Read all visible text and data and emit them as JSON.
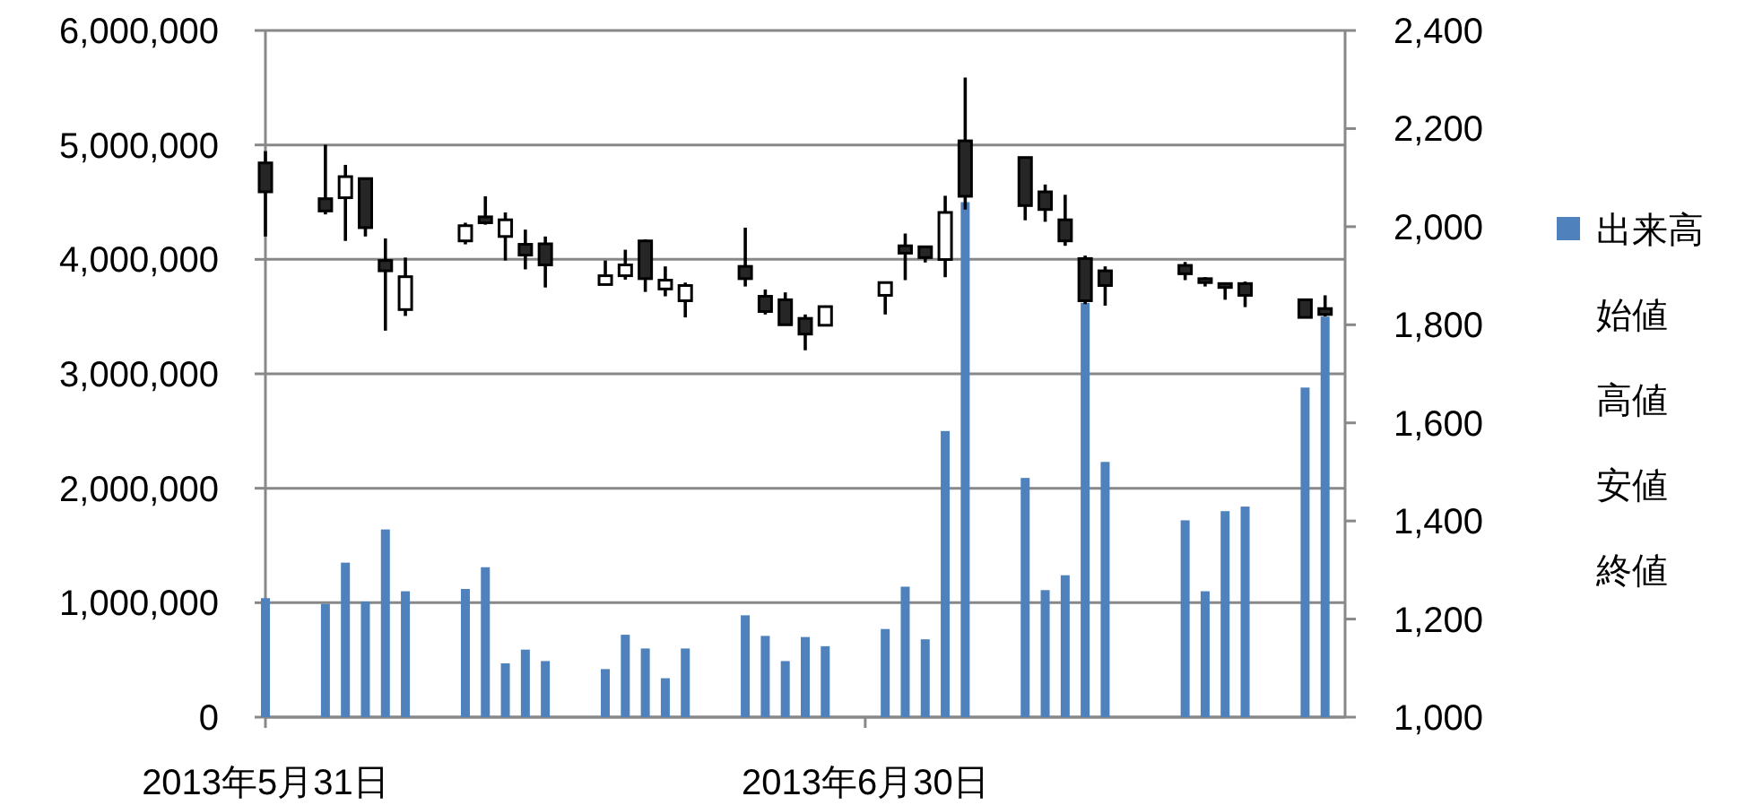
{
  "chart_data": {
    "type": "bar",
    "x": [
      "2013-05-31",
      "2013-06-03",
      "2013-06-04",
      "2013-06-05",
      "2013-06-06",
      "2013-06-07",
      "2013-06-10",
      "2013-06-11",
      "2013-06-12",
      "2013-06-13",
      "2013-06-14",
      "2013-06-17",
      "2013-06-18",
      "2013-06-19",
      "2013-06-20",
      "2013-06-21",
      "2013-06-24",
      "2013-06-25",
      "2013-06-26",
      "2013-06-27",
      "2013-06-28",
      "2013-07-01",
      "2013-07-02",
      "2013-07-03",
      "2013-07-04",
      "2013-07-05",
      "2013-07-08",
      "2013-07-09",
      "2013-07-10",
      "2013-07-11",
      "2013-07-12",
      "2013-07-16",
      "2013-07-17",
      "2013-07-18",
      "2013-07-19",
      "2013-07-22",
      "2013-07-23"
    ],
    "series": [
      {
        "name": "出来高",
        "color": "#4f81bd",
        "values": [
          1040000,
          990000,
          1350000,
          1010000,
          1640000,
          1100000,
          1120000,
          1310000,
          470000,
          590000,
          490000,
          420000,
          720000,
          600000,
          340000,
          600000,
          890000,
          710000,
          490000,
          700000,
          620000,
          770000,
          1140000,
          680000,
          2500000,
          4500000,
          2090000,
          1110000,
          1240000,
          3620000,
          2230000,
          1720000,
          1100000,
          1800000,
          1840000,
          2880000,
          3500000
        ]
      },
      {
        "type": "candlestick",
        "axis": "y2",
        "colors": [
          "#262626",
          "#262626",
          "#ffffff",
          "#262626",
          "#262626",
          "#ffffff",
          "#ffffff",
          "#262626",
          "#ffffff",
          "#262626",
          "#262626",
          "#ffffff",
          "#ffffff",
          "#262626",
          "#ffffff",
          "#ffffff",
          "#262626",
          "#262626",
          "#262626",
          "#262626",
          "#ffffff",
          "#ffffff",
          "#262626",
          "#262626",
          "#ffffff",
          "#262626",
          "#262626",
          "#262626",
          "#262626",
          "#262626",
          "#262626",
          "#262626",
          "#262626",
          "#262626",
          "#262626",
          "#262626",
          "#262626"
        ],
        "ohlc": [
          [
            2130,
            2154,
            1980,
            2071
          ],
          [
            2057,
            2167,
            2025,
            2032
          ],
          [
            2059,
            2126,
            1971,
            2102
          ],
          [
            2098,
            2098,
            1980,
            1998
          ],
          [
            1931,
            1976,
            1788,
            1910
          ],
          [
            1831,
            1937,
            1818,
            1898
          ],
          [
            1971,
            2008,
            1964,
            2002
          ],
          [
            2020,
            2062,
            2004,
            2008
          ],
          [
            1980,
            2029,
            1931,
            2014
          ],
          [
            1964,
            1994,
            1913,
            1942
          ],
          [
            1965,
            1980,
            1876,
            1922
          ],
          [
            1882,
            1931,
            1882,
            1900
          ],
          [
            1900,
            1953,
            1892,
            1922
          ],
          [
            1971,
            1974,
            1867,
            1894
          ],
          [
            1873,
            1919,
            1858,
            1891
          ],
          [
            1849,
            1886,
            1815,
            1880
          ],
          [
            1919,
            1998,
            1878,
            1894
          ],
          [
            1858,
            1872,
            1821,
            1827
          ],
          [
            1851,
            1866,
            1800,
            1800
          ],
          [
            1813,
            1821,
            1748,
            1781
          ],
          [
            1799,
            1839,
            1799,
            1837
          ],
          [
            1860,
            1888,
            1821,
            1886
          ],
          [
            1961,
            1986,
            1891,
            1946
          ],
          [
            1959,
            1961,
            1927,
            1937
          ],
          [
            1933,
            2063,
            1897,
            2029
          ],
          [
            2175,
            2304,
            2035,
            2062
          ],
          [
            2141,
            2141,
            2013,
            2043
          ],
          [
            2071,
            2086,
            2010,
            2035
          ],
          [
            2014,
            2065,
            1961,
            1971
          ],
          [
            1935,
            1941,
            1842,
            1849
          ],
          [
            1910,
            1919,
            1839,
            1880
          ],
          [
            1921,
            1928,
            1891,
            1904
          ],
          [
            1894,
            1897,
            1878,
            1886
          ],
          [
            1884,
            1884,
            1851,
            1876
          ],
          [
            1884,
            1888,
            1836,
            1860
          ],
          [
            1851,
            1851,
            1815,
            1815
          ],
          [
            1833,
            1860,
            1817,
            1821
          ]
        ]
      }
    ],
    "xlim": [
      "2013-05-31",
      "2013-07-24"
    ],
    "xticks": [
      {
        "value": "2013-05-31",
        "label": "2013年5月31日"
      },
      {
        "value": "2013-06-30",
        "label": "2013年6月30日"
      }
    ],
    "ylim": [
      0,
      6000000
    ],
    "yticks": [
      0,
      {
        "value": 1000000,
        "label": "1,000,000"
      },
      {
        "value": 2000000,
        "label": "2,000,000"
      },
      {
        "value": 3000000,
        "label": "3,000,000"
      },
      {
        "value": 4000000,
        "label": "4,000,000"
      },
      {
        "value": 5000000,
        "label": "5,000,000"
      },
      {
        "value": 6000000,
        "label": "6,000,000"
      }
    ],
    "y2lim": [
      1000,
      2400
    ],
    "y2ticks": [
      {
        "value": 1000,
        "label": "1,000"
      },
      {
        "value": 1200,
        "label": "1,200"
      },
      {
        "value": 1400,
        "label": "1,400"
      },
      {
        "value": 1600,
        "label": "1,600"
      },
      {
        "value": 1800,
        "label": "1,800"
      },
      {
        "value": 2000,
        "label": "2,000"
      },
      {
        "value": 2200,
        "label": "2,200"
      },
      {
        "value": 2400,
        "label": "2,400"
      }
    ],
    "grid": "y",
    "legend": "right",
    "annotations": [
      "始値",
      "高値",
      "安値",
      "終値"
    ]
  }
}
